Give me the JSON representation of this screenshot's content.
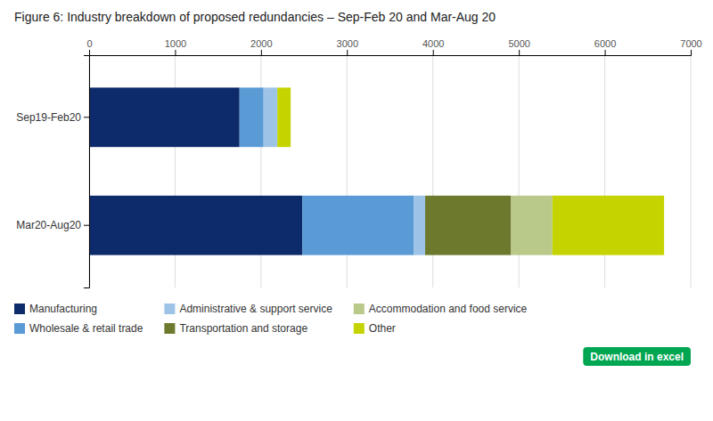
{
  "chart_data": {
    "type": "bar",
    "orientation": "horizontal",
    "stacked": true,
    "title": "Figure 6:   Industry breakdown of proposed redundancies – Sep-Feb 20 and Mar-Aug 20",
    "categories": [
      "Sep19-Feb20",
      "Mar20-Aug20"
    ],
    "series": [
      {
        "name": "Manufacturing",
        "color": "#0d2b6b",
        "values": [
          1750,
          2480
        ]
      },
      {
        "name": "Wholesale & retail trade",
        "color": "#5b9bd5",
        "values": [
          280,
          1300
        ]
      },
      {
        "name": "Administrative & support service",
        "color": "#9dc3e6",
        "values": [
          160,
          130
        ]
      },
      {
        "name": "Transportation and storage",
        "color": "#6d7a2e",
        "values": [
          0,
          1000
        ]
      },
      {
        "name": "Accommodation and food service",
        "color": "#b8c98a",
        "values": [
          0,
          480
        ]
      },
      {
        "name": "Other",
        "color": "#c5d400",
        "values": [
          155,
          1300
        ]
      }
    ],
    "xlim": [
      0,
      7000
    ],
    "xticks": [
      0,
      1000,
      2000,
      3000,
      4000,
      5000,
      6000,
      7000
    ],
    "grid": true,
    "legend": "bottom",
    "annotations": [
      {
        "text": "Download in excel",
        "color": "#00a651"
      }
    ]
  }
}
